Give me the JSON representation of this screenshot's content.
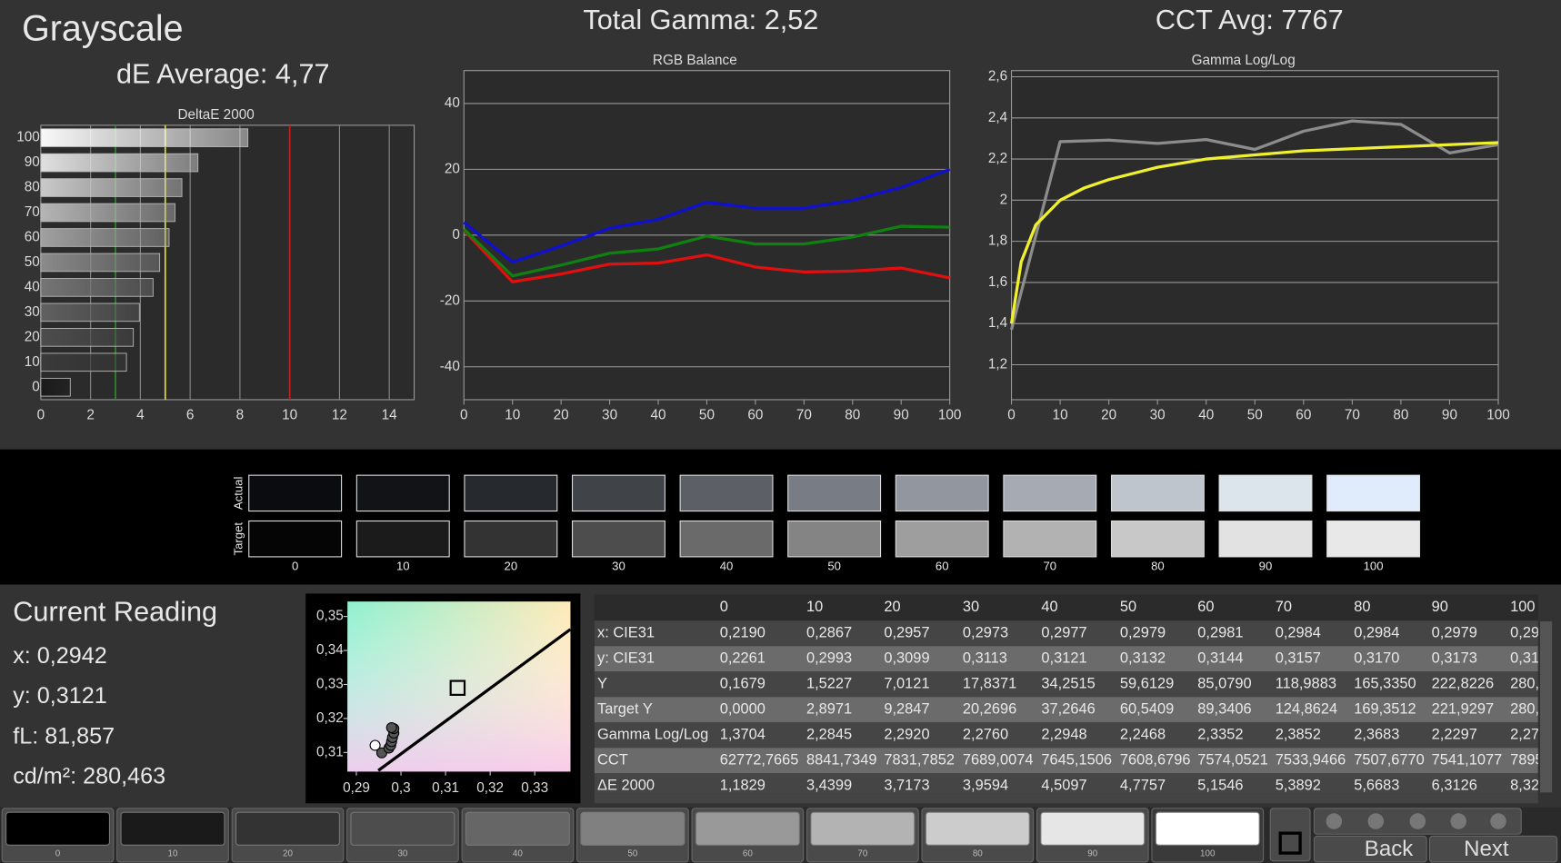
{
  "header": {
    "title": "Grayscale",
    "de_average": "dE Average: 4,77",
    "total_gamma": "Total Gamma: 2,52",
    "cct_avg": "CCT Avg: 7767"
  },
  "current_reading": {
    "title": "Current Reading",
    "x": "x: 0,2942",
    "y": "y: 0,3121",
    "fl": "fL: 81,857",
    "cdm2": "cd/m²: 280,463"
  },
  "chart_data": [
    {
      "type": "bar",
      "orientation": "horizontal",
      "title": "DeltaE 2000",
      "categories": [
        0,
        10,
        20,
        30,
        40,
        50,
        60,
        70,
        80,
        90,
        100
      ],
      "values": [
        1.1829,
        3.4399,
        3.7173,
        3.9594,
        4.5097,
        4.7757,
        5.1546,
        5.3892,
        5.6683,
        6.3126,
        8.32
      ],
      "colors": [
        "#1a1a1a",
        "#3a3a3a",
        "#4d4d4d",
        "#606060",
        "#757575",
        "#8a8a8a",
        "#a0a0a0",
        "#b5b5b5",
        "#cacaca",
        "#e0e0e0",
        "#f8f8f8"
      ],
      "xlim": [
        0,
        15
      ],
      "xticks": [
        0,
        2,
        4,
        6,
        8,
        10,
        12,
        14
      ],
      "grid": true,
      "reference_lines": [
        {
          "value": 3,
          "color": "#2e8b2e"
        },
        {
          "value": 5,
          "color": "#e6e620"
        },
        {
          "value": 10,
          "color": "#c42020"
        }
      ]
    },
    {
      "type": "line",
      "title": "RGB Balance",
      "x": [
        0,
        10,
        20,
        30,
        40,
        50,
        60,
        70,
        80,
        90,
        100
      ],
      "series": [
        {
          "color": "#e01010",
          "values": [
            1.5,
            -14.2,
            -11.8,
            -8.8,
            -8.5,
            -6,
            -9.7,
            -11.2,
            -10.9,
            -10,
            -13
          ]
        },
        {
          "color": "#108010",
          "values": [
            1.8,
            -12.4,
            -9.1,
            -5.5,
            -4.2,
            -0.3,
            -2.7,
            -2.7,
            -0.6,
            2.7,
            2.4
          ]
        },
        {
          "color": "#1010d0",
          "values": [
            3.9,
            -8.2,
            -3.3,
            2.1,
            4.8,
            10,
            8.2,
            8.2,
            10.6,
            14.5,
            20
          ]
        }
      ],
      "xlim": [
        0,
        100
      ],
      "xticks": [
        0,
        10,
        20,
        30,
        40,
        50,
        60,
        70,
        80,
        90,
        100
      ],
      "ylim": [
        -50,
        50
      ],
      "yticks": [
        -40,
        -20,
        0,
        20,
        40
      ],
      "grid": true
    },
    {
      "type": "line",
      "title": "Gamma Log/Log",
      "x": [
        0,
        10,
        20,
        30,
        40,
        50,
        60,
        70,
        80,
        90,
        100
      ],
      "series": [
        {
          "color": "#8c8c8c",
          "values": [
            1.3704,
            2.2845,
            2.292,
            2.276,
            2.2948,
            2.2468,
            2.3352,
            2.3852,
            2.3683,
            2.2297,
            2.27
          ]
        },
        {
          "color": "#f0f030",
          "x": [
            0,
            2,
            5,
            10,
            15,
            20,
            30,
            40,
            50,
            60,
            70,
            80,
            90,
            100
          ],
          "values": [
            1.4,
            1.7,
            1.88,
            2.0,
            2.06,
            2.1,
            2.16,
            2.2,
            2.22,
            2.24,
            2.25,
            2.26,
            2.27,
            2.28
          ]
        }
      ],
      "xlim": [
        0,
        100
      ],
      "xticks": [
        0,
        10,
        20,
        30,
        40,
        50,
        60,
        70,
        80,
        90,
        100
      ],
      "ylim": [
        1.03,
        2.63
      ],
      "yticks": [
        {
          "value": 1.2,
          "label": "1,2"
        },
        {
          "value": 1.4,
          "label": "1,4"
        },
        {
          "value": 1.6,
          "label": "1,6"
        },
        {
          "value": 1.8,
          "label": "1,8"
        },
        2,
        {
          "value": 2.2,
          "label": "2,2"
        },
        {
          "value": 2.4,
          "label": "2,4"
        },
        {
          "value": 2.6,
          "label": "2,6"
        }
      ],
      "grid": true
    },
    {
      "type": "scatter",
      "series": [
        {
          "color": "#555555",
          "x": [
            0.2957,
            0.2973,
            0.2977,
            0.2979,
            0.2981,
            0.2984,
            0.2984,
            0.2979
          ],
          "values": [
            0.3099,
            0.3113,
            0.3121,
            0.3132,
            0.3144,
            0.3157,
            0.317,
            0.3173
          ]
        },
        {
          "color": "#ffffff",
          "x": [
            0.2942
          ],
          "values": [
            0.3121
          ]
        }
      ],
      "target": {
        "x": 0.3127,
        "y": 0.329
      },
      "xlim": [
        0.288,
        0.338
      ],
      "xticks": [
        {
          "value": 0.29,
          "label": "0,29"
        },
        {
          "value": 0.3,
          "label": "0,3"
        },
        {
          "value": 0.31,
          "label": "0,31"
        },
        {
          "value": 0.32,
          "label": "0,32"
        },
        {
          "value": 0.33,
          "label": "0,33"
        }
      ],
      "ylim": [
        0.3044,
        0.3544
      ],
      "yticks": [
        {
          "value": 0.31,
          "label": "0,31"
        },
        {
          "value": 0.32,
          "label": "0,32"
        },
        {
          "value": 0.33,
          "label": "0,33"
        },
        {
          "value": 0.34,
          "label": "0,34"
        },
        {
          "value": 0.35,
          "label": "0,35"
        }
      ]
    }
  ],
  "swatches": {
    "row_labels": [
      "Actual",
      "Target"
    ],
    "labels": [
      "0",
      "10",
      "20",
      "30",
      "40",
      "50",
      "60",
      "70",
      "80",
      "90",
      "100"
    ],
    "actual_colors": [
      "#0a0c10",
      "#111316",
      "#26292d",
      "#404348",
      "#5c5f66",
      "#787c84",
      "#92969e",
      "#a6abb3",
      "#bfc5cc",
      "#dce4ec",
      "#e0ecfb"
    ],
    "target_colors": [
      "#050505",
      "#1b1b1b",
      "#333333",
      "#4d4d4d",
      "#6a6a6a",
      "#848484",
      "#9e9e9e",
      "#b2b2b2",
      "#c8c8c8",
      "#e2e2e2",
      "#e8e8e8"
    ]
  },
  "table": {
    "header": [
      "0",
      "10",
      "20",
      "30",
      "40",
      "50",
      "60",
      "70",
      "80",
      "90",
      "100"
    ],
    "rows": [
      [
        "x: CIE31",
        "0,2190",
        "0,2867",
        "0,2957",
        "0,2973",
        "0,2977",
        "0,2979",
        "0,2981",
        "0,2984",
        "0,2984",
        "0,2979",
        "0,29"
      ],
      [
        "y: CIE31",
        "0,2261",
        "0,2993",
        "0,3099",
        "0,3113",
        "0,3121",
        "0,3132",
        "0,3144",
        "0,3157",
        "0,3170",
        "0,3173",
        "0,31"
      ],
      [
        "Y",
        "0,1679",
        "1,5227",
        "7,0121",
        "17,8371",
        "34,2515",
        "59,6129",
        "85,0790",
        "118,9883",
        "165,3350",
        "222,8226",
        "280,"
      ],
      [
        "Target Y",
        "0,0000",
        "2,8971",
        "9,2847",
        "20,2696",
        "37,2646",
        "60,5409",
        "89,3406",
        "124,8624",
        "169,3512",
        "221,9297",
        "280,"
      ],
      [
        "Gamma Log/Log",
        "1,3704",
        "2,2845",
        "2,2920",
        "2,2760",
        "2,2948",
        "2,2468",
        "2,3352",
        "2,3852",
        "2,3683",
        "2,2297",
        "2,27"
      ],
      [
        "CCT",
        "62772,7665",
        "8841,7349",
        "7831,7852",
        "7689,0074",
        "7645,1506",
        "7608,6796",
        "7574,0521",
        "7533,9466",
        "7507,6770",
        "7541,1077",
        "7895"
      ],
      [
        "ΔE 2000",
        "1,1829",
        "3,4399",
        "3,7173",
        "3,9594",
        "4,5097",
        "4,7757",
        "5,1546",
        "5,3892",
        "5,6683",
        "6,3126",
        "8,32"
      ]
    ]
  },
  "buttons": {
    "labels": [
      "0",
      "10",
      "20",
      "30",
      "40",
      "50",
      "60",
      "70",
      "80",
      "90",
      "100"
    ],
    "colors": [
      "#000000",
      "#1a1a1a",
      "#333333",
      "#4d4d4d",
      "#666666",
      "#808080",
      "#999999",
      "#b3b3b3",
      "#cccccc",
      "#e6e6e6",
      "#ffffff"
    ],
    "back": "Back",
    "next": "Next"
  }
}
